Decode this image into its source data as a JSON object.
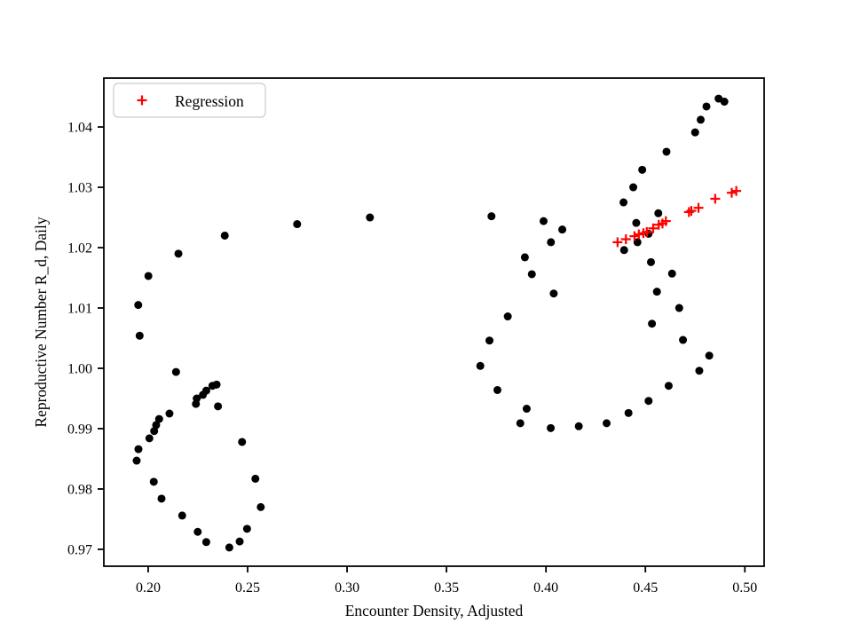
{
  "figure": {
    "background": "#ffffff",
    "plot_border_color": "#000000"
  },
  "chart_data": {
    "type": "scatter",
    "title": "",
    "xlabel": "Encounter Density, Adjusted",
    "ylabel": "Reproductive Number R_d, Daily",
    "xlim": [
      0.1777,
      0.5097
    ],
    "ylim": [
      0.9672,
      1.0481
    ],
    "xticks": [
      0.2,
      0.25,
      0.3,
      0.35,
      0.4,
      0.45,
      0.5
    ],
    "yticks": [
      0.97,
      0.98,
      0.99,
      1.0,
      1.01,
      1.02,
      1.03,
      1.04
    ],
    "grid": false,
    "legend": {
      "position": "upper left",
      "entries": [
        {
          "label": "Regression",
          "marker": "plus",
          "color": "#ff0000"
        }
      ]
    },
    "series": [
      {
        "name": "observations",
        "marker": "circle",
        "color": "#000000",
        "points": [
          [
            0.2385,
            1.022
          ],
          [
            0.2152,
            1.019
          ],
          [
            0.2001,
            1.0153
          ],
          [
            0.195,
            1.0105
          ],
          [
            0.1957,
            1.0054
          ],
          [
            0.214,
            0.9994
          ],
          [
            0.2344,
            0.9973
          ],
          [
            0.2323,
            0.9971
          ],
          [
            0.2292,
            0.9963
          ],
          [
            0.2275,
            0.9956
          ],
          [
            0.2244,
            0.995
          ],
          [
            0.224,
            0.9941
          ],
          [
            0.2351,
            0.9937
          ],
          [
            0.2107,
            0.9925
          ],
          [
            0.2055,
            0.9916
          ],
          [
            0.204,
            0.9906
          ],
          [
            0.203,
            0.9896
          ],
          [
            0.2006,
            0.9884
          ],
          [
            0.1951,
            0.9866
          ],
          [
            0.1942,
            0.9847
          ],
          [
            0.2472,
            0.9878
          ],
          [
            0.2539,
            0.9817
          ],
          [
            0.2028,
            0.9812
          ],
          [
            0.2067,
            0.9784
          ],
          [
            0.2566,
            0.977
          ],
          [
            0.2171,
            0.9756
          ],
          [
            0.2497,
            0.9734
          ],
          [
            0.2249,
            0.9729
          ],
          [
            0.2292,
            0.9712
          ],
          [
            0.246,
            0.9713
          ],
          [
            0.2408,
            0.9703
          ],
          [
            0.2749,
            1.0239
          ],
          [
            0.3115,
            1.025
          ],
          [
            0.3726,
            1.0252
          ],
          [
            0.3988,
            1.0244
          ],
          [
            0.4082,
            1.023
          ],
          [
            0.4025,
            1.0209
          ],
          [
            0.3894,
            1.0184
          ],
          [
            0.3929,
            1.0156
          ],
          [
            0.4039,
            1.0124
          ],
          [
            0.3808,
            1.0086
          ],
          [
            0.3716,
            1.0046
          ],
          [
            0.367,
            1.0004
          ],
          [
            0.3756,
            0.9964
          ],
          [
            0.3903,
            0.9933
          ],
          [
            0.3871,
            0.9909
          ],
          [
            0.4024,
            0.9901
          ],
          [
            0.4165,
            0.9904
          ],
          [
            0.4305,
            0.9909
          ],
          [
            0.4415,
            0.9926
          ],
          [
            0.4516,
            0.9946
          ],
          [
            0.4617,
            0.9971
          ],
          [
            0.4771,
            0.9996
          ],
          [
            0.4821,
            1.0021
          ],
          [
            0.4689,
            1.0047
          ],
          [
            0.4533,
            1.0074
          ],
          [
            0.467,
            1.01
          ],
          [
            0.4558,
            1.0127
          ],
          [
            0.4634,
            1.0157
          ],
          [
            0.4528,
            1.0176
          ],
          [
            0.4393,
            1.0196
          ],
          [
            0.446,
            1.0209
          ],
          [
            0.4516,
            1.0223
          ],
          [
            0.4454,
            1.0241
          ],
          [
            0.4565,
            1.0257
          ],
          [
            0.439,
            1.0275
          ],
          [
            0.4439,
            1.03
          ],
          [
            0.4484,
            1.0329
          ],
          [
            0.4606,
            1.0359
          ],
          [
            0.475,
            1.0391
          ],
          [
            0.4778,
            1.0412
          ],
          [
            0.4807,
            1.0434
          ],
          [
            0.4868,
            1.0447
          ],
          [
            0.4897,
            1.0442
          ]
        ]
      },
      {
        "name": "Regression",
        "marker": "plus",
        "color": "#ff0000",
        "points": [
          [
            0.436,
            1.0209
          ],
          [
            0.4402,
            1.0214
          ],
          [
            0.4445,
            1.0219
          ],
          [
            0.4467,
            1.0222
          ],
          [
            0.449,
            1.0224
          ],
          [
            0.4507,
            1.0226
          ],
          [
            0.4539,
            1.0232
          ],
          [
            0.4567,
            1.0238
          ],
          [
            0.4586,
            1.024
          ],
          [
            0.4603,
            1.0244
          ],
          [
            0.4719,
            1.0259
          ],
          [
            0.4731,
            1.0261
          ],
          [
            0.4767,
            1.0266
          ],
          [
            0.4851,
            1.0281
          ],
          [
            0.4934,
            1.0291
          ],
          [
            0.4957,
            1.0294
          ]
        ]
      }
    ]
  }
}
